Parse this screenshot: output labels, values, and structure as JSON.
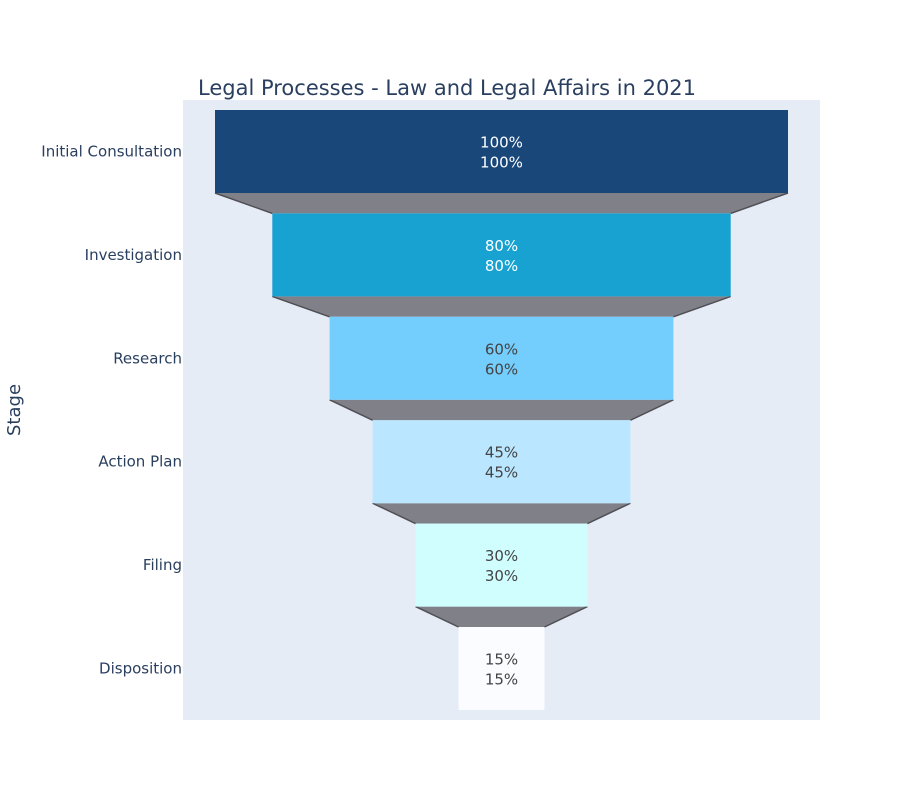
{
  "chart_data": {
    "type": "funnel",
    "title": "Legal Processes - Law and Legal Affairs in 2021",
    "ylabel": "Stage",
    "categories": [
      "Initial Consultation",
      "Investigation",
      "Research",
      "Action Plan",
      "Filing",
      "Disposition"
    ],
    "values": [
      100,
      80,
      60,
      45,
      30,
      15
    ],
    "text_info": [
      "100%",
      "80%",
      "60%",
      "45%",
      "30%",
      "15%"
    ],
    "percent_initial": [
      "100%",
      "80%",
      "60%",
      "45%",
      "30%",
      "15%"
    ],
    "colors": [
      "#19477a",
      "#17a2d2",
      "#73cdfd",
      "#bae7ff",
      "#d0feff",
      "#fbfcff"
    ],
    "label_colors": [
      "#ffffff",
      "#ffffff",
      "#444444",
      "#444444",
      "#444444",
      "#444444"
    ],
    "connector_color": "#808188",
    "connector_line_color": "#4f4f55",
    "plot_background": "#e5ecf6",
    "title_color": "#2a3f5f"
  }
}
